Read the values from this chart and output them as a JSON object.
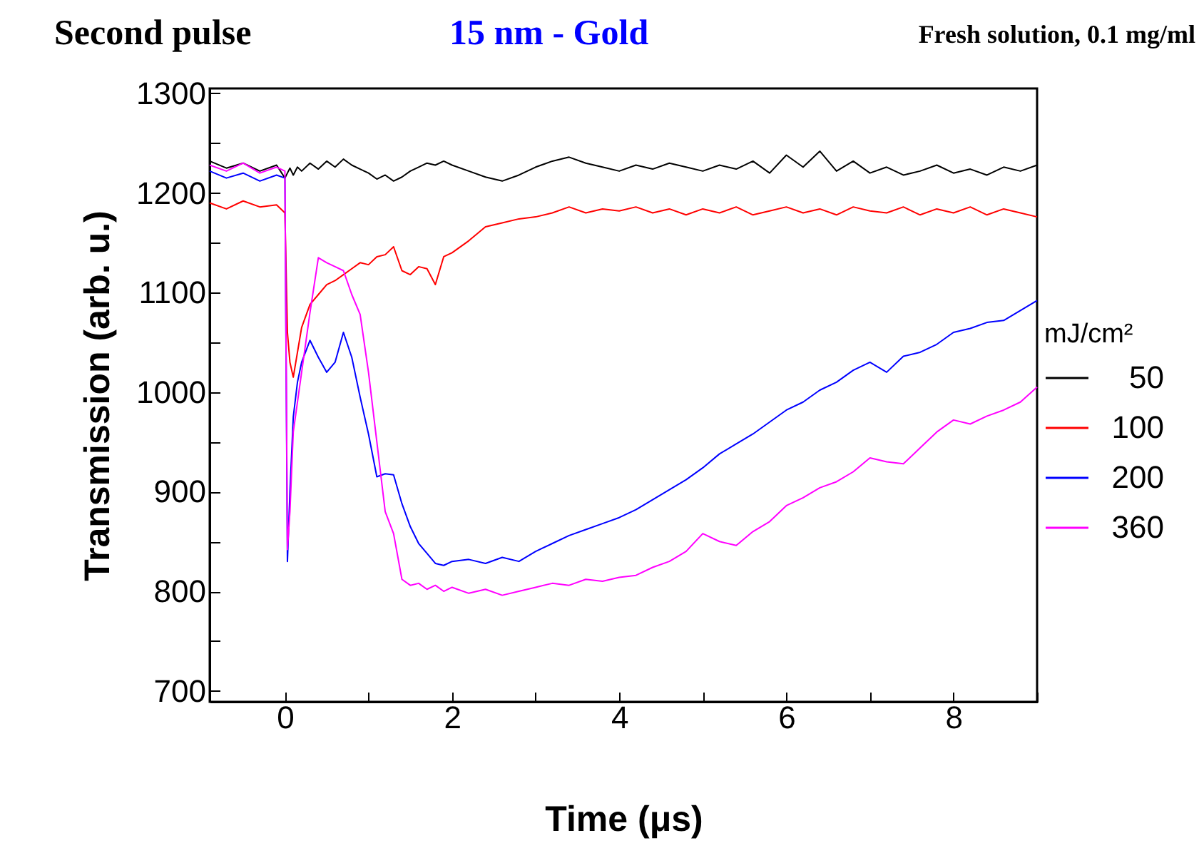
{
  "chart_data": {
    "type": "line",
    "title": "Second pulse",
    "subtitle": "15 nm - Gold",
    "annotations": [
      "Fresh solution, 0.1 mg/ml"
    ],
    "xlabel": "Time (μs)",
    "ylabel": "Transmission (arb. u.)",
    "legend_title": "mJ/cm²",
    "legend": "right",
    "grid": false,
    "line_style": "solid",
    "xlim": [
      -0.9,
      9
    ],
    "ylim": [
      689,
      1305
    ],
    "xticks": [
      0,
      {
        "value": 1,
        "label": null
      },
      2,
      {
        "value": 3,
        "label": null
      },
      4,
      {
        "value": 5,
        "label": null
      },
      6,
      {
        "value": 7,
        "label": null
      },
      8,
      {
        "value": 9,
        "label": null
      }
    ],
    "yticks": [
      700,
      {
        "value": 750,
        "label": null
      },
      800,
      {
        "value": 850,
        "label": null
      },
      900,
      {
        "value": 950,
        "label": null
      },
      1000,
      {
        "value": 1050,
        "label": null
      },
      1100,
      {
        "value": 1150,
        "label": null
      },
      1200,
      {
        "value": 1250,
        "label": null
      },
      1300
    ],
    "x": [
      -0.9,
      -0.7,
      -0.5,
      -0.3,
      -0.1,
      0,
      0.03,
      0.06,
      0.1,
      0.15,
      0.2,
      0.3,
      0.4,
      0.5,
      0.6,
      0.7,
      0.8,
      0.9,
      1.0,
      1.1,
      1.2,
      1.3,
      1.4,
      1.5,
      1.6,
      1.7,
      1.8,
      1.9,
      2.0,
      2.2,
      2.4,
      2.6,
      2.8,
      3.0,
      3.2,
      3.4,
      3.6,
      3.8,
      4.0,
      4.2,
      4.4,
      4.6,
      4.8,
      5.0,
      5.2,
      5.4,
      5.6,
      5.8,
      6.0,
      6.2,
      6.4,
      6.6,
      6.8,
      7.0,
      7.2,
      7.4,
      7.6,
      7.8,
      8.0,
      8.2,
      8.4,
      8.6,
      8.8,
      9.0
    ],
    "series": [
      {
        "name": "50",
        "color": "#000000",
        "values": [
          1232,
          1225,
          1230,
          1222,
          1228,
          1215,
          1220,
          1225,
          1218,
          1226,
          1222,
          1230,
          1224,
          1232,
          1226,
          1234,
          1228,
          1224,
          1220,
          1214,
          1218,
          1212,
          1216,
          1222,
          1226,
          1230,
          1228,
          1232,
          1228,
          1222,
          1216,
          1212,
          1218,
          1226,
          1232,
          1236,
          1230,
          1226,
          1222,
          1228,
          1224,
          1230,
          1226,
          1222,
          1228,
          1224,
          1232,
          1220,
          1238,
          1226,
          1242,
          1222,
          1232,
          1220,
          1226,
          1218,
          1222,
          1228,
          1220,
          1224,
          1218,
          1226,
          1222,
          1228
        ]
      },
      {
        "name": "100",
        "color": "#ff0000",
        "values": [
          1190,
          1184,
          1192,
          1186,
          1188,
          1180,
          1060,
          1030,
          1015,
          1040,
          1065,
          1088,
          1098,
          1108,
          1112,
          1118,
          1124,
          1130,
          1128,
          1136,
          1138,
          1146,
          1122,
          1118,
          1126,
          1124,
          1108,
          1136,
          1140,
          1152,
          1166,
          1170,
          1174,
          1176,
          1180,
          1186,
          1180,
          1184,
          1182,
          1186,
          1180,
          1184,
          1178,
          1184,
          1180,
          1186,
          1178,
          1182,
          1186,
          1180,
          1184,
          1178,
          1186,
          1182,
          1180,
          1186,
          1178,
          1184,
          1180,
          1186,
          1178,
          1184,
          1180,
          1176
        ]
      },
      {
        "name": "200",
        "color": "#0000ff",
        "values": [
          1222,
          1215,
          1220,
          1212,
          1218,
          1215,
          830,
          900,
          975,
          1010,
          1030,
          1052,
          1035,
          1020,
          1030,
          1060,
          1035,
          995,
          958,
          915,
          918,
          917,
          888,
          865,
          848,
          838,
          828,
          826,
          830,
          832,
          828,
          834,
          830,
          840,
          848,
          856,
          862,
          868,
          874,
          882,
          892,
          902,
          912,
          924,
          938,
          948,
          958,
          970,
          982,
          990,
          1002,
          1010,
          1022,
          1030,
          1020,
          1036,
          1040,
          1048,
          1060,
          1064,
          1070,
          1072,
          1082,
          1092
        ]
      },
      {
        "name": "360",
        "color": "#ff00ff",
        "values": [
          1228,
          1222,
          1230,
          1220,
          1226,
          1222,
          842,
          880,
          960,
          990,
          1020,
          1080,
          1135,
          1130,
          1126,
          1122,
          1098,
          1078,
          1020,
          950,
          880,
          858,
          812,
          806,
          808,
          802,
          806,
          800,
          804,
          798,
          802,
          796,
          800,
          804,
          808,
          806,
          812,
          810,
          814,
          816,
          824,
          830,
          840,
          858,
          850,
          846,
          860,
          870,
          886,
          894,
          904,
          910,
          920,
          934,
          930,
          928,
          944,
          960,
          972,
          968,
          976,
          982,
          990,
          1005
        ]
      }
    ]
  }
}
